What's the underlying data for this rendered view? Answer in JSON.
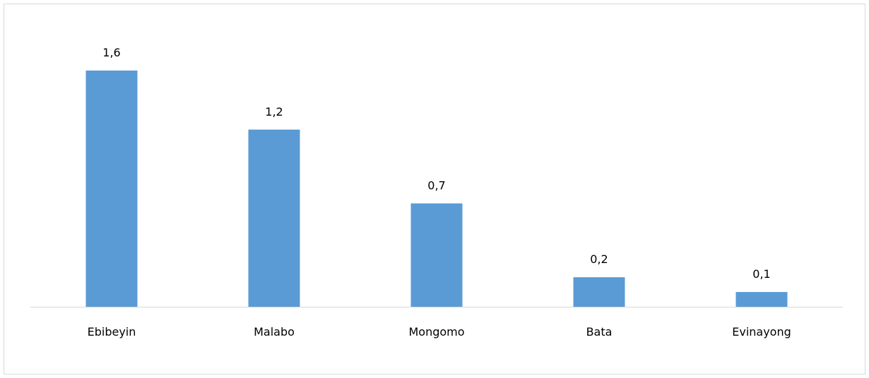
{
  "chart_data": {
    "type": "bar",
    "title": "",
    "xlabel": "",
    "ylabel": "",
    "categories": [
      "Ebibeyin",
      "Malabo",
      "Mongomo",
      "Bata",
      "Evinayong"
    ],
    "values": [
      1.6,
      1.2,
      0.7,
      0.2,
      0.1
    ],
    "value_labels": [
      "1,6",
      "1,2",
      "0,7",
      "0,2",
      "0,1"
    ],
    "ylim": [
      0,
      1.6
    ],
    "grid": false,
    "legend": "none",
    "colors": {
      "bar": "#5b9bd5",
      "axis": "#d9d9d9",
      "text": "#000000"
    }
  }
}
